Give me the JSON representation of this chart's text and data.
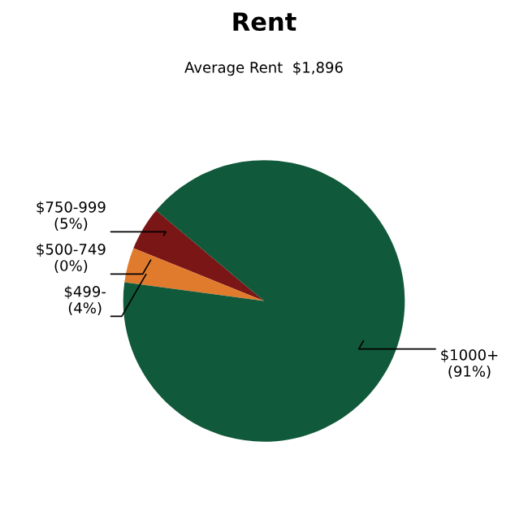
{
  "chart_data": {
    "type": "pie",
    "title": "Rent",
    "subtitle": "Average Rent  $1,896",
    "categories": [
      "$750-999",
      "$500-749",
      "$499-",
      "$1000+"
    ],
    "values": [
      5,
      0,
      4,
      91
    ],
    "value_labels": [
      "(5%)",
      "(0%)",
      "(4%)",
      "(91%)"
    ],
    "colors": [
      "#7a1616",
      "#c0392b",
      "#e07b2e",
      "#10593a"
    ],
    "legend": false
  }
}
